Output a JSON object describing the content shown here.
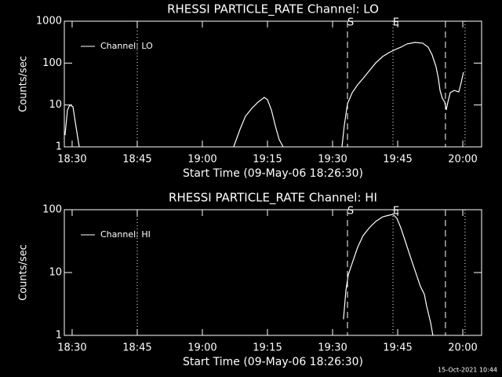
{
  "chart_data": [
    {
      "type": "line",
      "title": "RHESSI PARTICLE_RATE Channel: LO",
      "xlabel": "Start Time (09-May-06 18:26:30)",
      "ylabel": "Counts/sec",
      "log_y": true,
      "legend": "upper left",
      "xlim": [
        "18:28:12",
        "20:04:20"
      ],
      "xticks": [
        "18:30",
        "18:45",
        "19:00",
        "19:15",
        "19:30",
        "19:45",
        "20:00"
      ],
      "ylim": [
        1,
        1000
      ],
      "yticks": [
        1,
        10,
        100,
        1000
      ],
      "series": [
        {
          "name": "Channel: LO",
          "color": "#ffffff",
          "x": [
            "18:28:22",
            "18:28:55",
            "18:29:28",
            "18:30:11",
            "18:30:43",
            "18:31:38",
            null,
            "19:07:13",
            "19:08:40",
            "19:09:56",
            "19:11:23",
            "19:12:50",
            "19:14:16",
            "19:15:00",
            "19:15:54",
            "19:16:48",
            "19:17:42",
            "19:18:37",
            null,
            "19:32:10",
            "19:32:42",
            "19:33:26",
            "19:34:31",
            "19:35:46",
            "19:37:02",
            "19:38:29",
            "19:39:56",
            "19:41:34",
            "19:43:00",
            "19:44:27",
            "19:45:43",
            "19:47:10",
            "19:48:58",
            "19:50:46",
            "19:52:02",
            "19:52:56",
            "19:53:50",
            "19:54:23",
            "19:54:45",
            "19:55:17",
            "19:55:50",
            "19:56:11",
            "19:56:34",
            "19:57:06",
            "19:58:00",
            "19:59:05",
            "19:59:38",
            "20:00:10"
          ],
          "values": [
            1.9,
            7.6,
            10,
            9.1,
            4.0,
            1,
            null,
            1,
            2.6,
            5.4,
            8.3,
            11.7,
            15.2,
            13.4,
            7.6,
            3.2,
            1.5,
            1,
            null,
            1,
            3.2,
            10.7,
            19.7,
            30.4,
            42.9,
            66,
            101,
            144,
            178,
            211,
            240,
            287,
            312,
            300,
            240,
            157,
            82,
            43,
            22.3,
            14.5,
            11.7,
            7.6,
            11.7,
            19.7,
            22.3,
            20.5,
            34.5,
            60.6
          ]
        }
      ],
      "annotations": [
        {
          "x": "18:45:00",
          "style": "dotted"
        },
        {
          "x": "19:33:26",
          "style": "dashed",
          "label": "S"
        },
        {
          "x": "19:43:55",
          "style": "dotted",
          "label": "E"
        },
        {
          "x": "19:56:00",
          "style": "dashed"
        },
        {
          "x": "20:00:31",
          "style": "dotted"
        }
      ]
    },
    {
      "type": "line",
      "title": "RHESSI PARTICLE_RATE Channel: HI",
      "xlabel": "Start Time (09-May-06 18:26:30)",
      "ylabel": "Counts/sec",
      "log_y": true,
      "legend": "upper left",
      "xlim": [
        "18:28:12",
        "20:04:20"
      ],
      "xticks": [
        "18:30",
        "18:45",
        "19:00",
        "19:15",
        "19:30",
        "19:45",
        "20:00"
      ],
      "ylim": [
        1,
        100
      ],
      "yticks": [
        1,
        10,
        100
      ],
      "series": [
        {
          "name": "Channel: HI",
          "color": "#ffffff",
          "x": [
            "19:32:31",
            "19:33:04",
            "19:33:37",
            "19:34:31",
            "19:35:46",
            "19:37:02",
            "19:38:29",
            "19:39:56",
            "19:41:34",
            "19:43:00",
            "19:43:55",
            "19:44:49",
            "19:45:43",
            "19:46:37",
            "19:47:31",
            "19:48:25",
            "19:49:20",
            "19:50:14",
            "19:51:08",
            "19:51:41",
            "19:52:35",
            "19:53:07"
          ],
          "values": [
            1.8,
            5.2,
            9.2,
            14.1,
            25.1,
            38.7,
            51.6,
            64.9,
            77.2,
            81.8,
            84.1,
            72.9,
            51.6,
            33.5,
            21.8,
            14.1,
            9.2,
            6.0,
            4.5,
            2.9,
            1.6,
            1
          ]
        }
      ],
      "annotations": [
        {
          "x": "18:45:00",
          "style": "dotted"
        },
        {
          "x": "19:33:26",
          "style": "dashed",
          "label": "S"
        },
        {
          "x": "19:43:55",
          "style": "dotted",
          "label": "E"
        },
        {
          "x": "19:56:00",
          "style": "dashed"
        },
        {
          "x": "20:00:31",
          "style": "dotted"
        }
      ]
    }
  ],
  "footer": "15-Oct-2021 10:44"
}
